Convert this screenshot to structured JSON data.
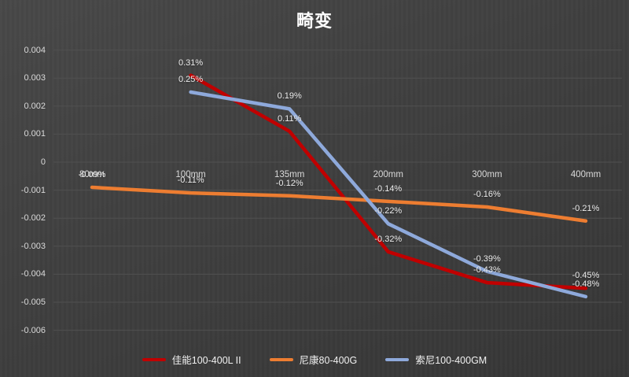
{
  "colors": {
    "background": "#3f3f3f",
    "gridline": "#505050",
    "axis_text": "#d9d9d9",
    "data_label_text": "#ededed",
    "title_text": "#ffffff",
    "canon_red": "#c00000",
    "nikon_orange": "#ed7d31",
    "sony_blue": "#8ea9db"
  },
  "chart_data": {
    "type": "line",
    "title": "畸变",
    "xlabel": "",
    "ylabel": "",
    "grid": true,
    "legend_position": "bottom",
    "ylim": [
      -0.006,
      0.004
    ],
    "categories": [
      "80mm",
      "100mm",
      "135mm",
      "200mm",
      "300mm",
      "400mm"
    ],
    "y_ticks": [
      {
        "label": "0.004",
        "value": 0.004
      },
      {
        "label": "0.003",
        "value": 0.003
      },
      {
        "label": "0.002",
        "value": 0.002
      },
      {
        "label": "0.001",
        "value": 0.001
      },
      {
        "label": "0",
        "value": 0
      },
      {
        "label": "-0.001",
        "value": -0.001
      },
      {
        "label": "-0.002",
        "value": -0.002
      },
      {
        "label": "-0.003",
        "value": -0.003
      },
      {
        "label": "-0.004",
        "value": -0.004
      },
      {
        "label": "-0.005",
        "value": -0.005
      },
      {
        "label": "-0.006",
        "value": -0.006
      }
    ],
    "series": [
      {
        "name": "佳能100-400L II",
        "color": "#c00000",
        "points": [
          {
            "category": "100mm",
            "value": 0.0031,
            "label": "0.31%"
          },
          {
            "category": "135mm",
            "value": 0.0011,
            "label": "0.11%"
          },
          {
            "category": "200mm",
            "value": -0.0032,
            "label": "-0.32%"
          },
          {
            "category": "300mm",
            "value": -0.0043,
            "label": "-0.43%"
          },
          {
            "category": "400mm",
            "value": -0.0045,
            "label": "-0.45%"
          }
        ]
      },
      {
        "name": "尼康80-400G",
        "color": "#ed7d31",
        "points": [
          {
            "category": "80mm",
            "value": -0.0009,
            "label": "-0.09%"
          },
          {
            "category": "100mm",
            "value": -0.0011,
            "label": "-0.11%"
          },
          {
            "category": "135mm",
            "value": -0.0012,
            "label": "-0.12%"
          },
          {
            "category": "200mm",
            "value": -0.0014,
            "label": "-0.14%"
          },
          {
            "category": "300mm",
            "value": -0.0016,
            "label": "-0.16%"
          },
          {
            "category": "400mm",
            "value": -0.0021,
            "label": "-0.21%"
          }
        ]
      },
      {
        "name": "索尼100-400GM",
        "color": "#8ea9db",
        "points": [
          {
            "category": "100mm",
            "value": 0.0025,
            "label": "0.25%"
          },
          {
            "category": "135mm",
            "value": 0.0019,
            "label": "0.19%"
          },
          {
            "category": "200mm",
            "value": -0.0022,
            "label": "-0.22%"
          },
          {
            "category": "300mm",
            "value": -0.0039,
            "label": "-0.39%"
          },
          {
            "category": "400mm",
            "value": -0.0048,
            "label": "-0.48%"
          }
        ]
      }
    ]
  }
}
